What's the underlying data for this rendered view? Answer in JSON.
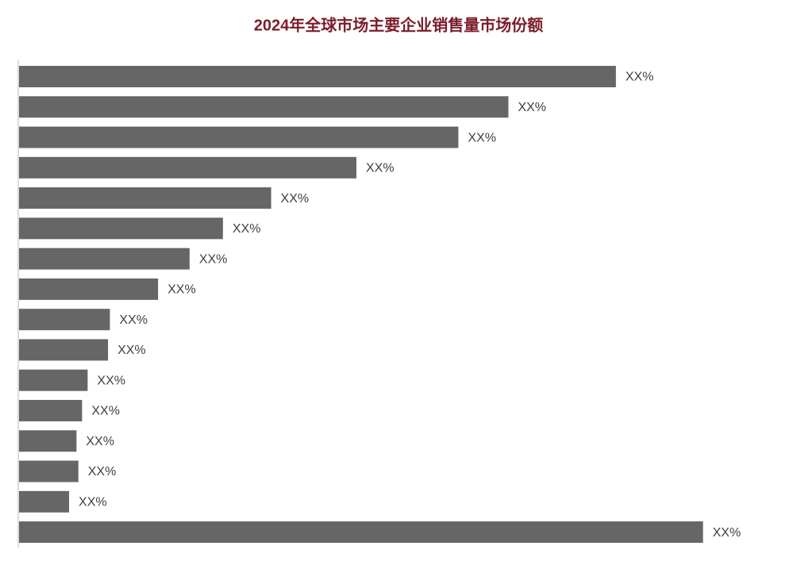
{
  "chart_data": {
    "type": "bar",
    "orientation": "horizontal",
    "title": "2024年全球市场主要企业销售量市场份额",
    "values": [
      32.2,
      26.4,
      23.7,
      18.2,
      13.6,
      11.0,
      9.2,
      7.5,
      4.9,
      4.8,
      3.7,
      3.4,
      3.1,
      3.2,
      2.7,
      36.9
    ],
    "value_labels": [
      "XX%",
      "XX%",
      "XX%",
      "XX%",
      "XX%",
      "XX%",
      "XX%",
      "XX%",
      "XX%",
      "XX%",
      "XX%",
      "XX%",
      "XX%",
      "XX%",
      "XX%",
      "XX%"
    ],
    "color": "#666666",
    "xlim": [
      0,
      40
    ]
  }
}
